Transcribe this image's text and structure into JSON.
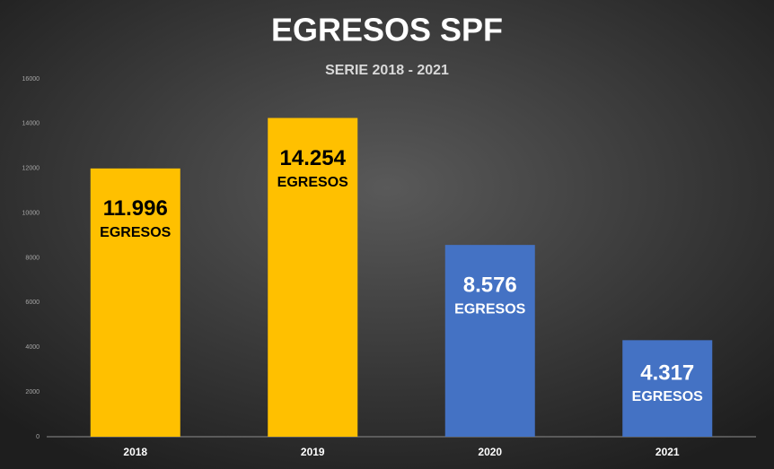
{
  "chart_data": {
    "type": "bar",
    "title": "EGRESOS SPF",
    "subtitle": "SERIE 2018 - 2021",
    "categories": [
      "2018",
      "2019",
      "2020",
      "2021"
    ],
    "values": [
      11996,
      14254,
      8576,
      4317
    ],
    "value_labels": [
      "11.996",
      "14.254",
      "8.576",
      "4.317"
    ],
    "data_label_suffix": "EGRESOS",
    "colors": [
      "#ffc000",
      "#ffc000",
      "#4472c4",
      "#4472c4"
    ],
    "ylim": [
      0,
      16000
    ],
    "yticks": [
      0,
      2000,
      4000,
      6000,
      8000,
      10000,
      12000,
      14000,
      16000
    ],
    "grid": false
  }
}
